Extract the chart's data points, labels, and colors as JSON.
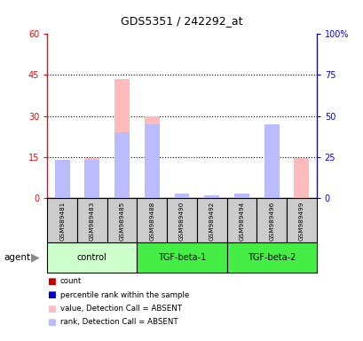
{
  "title": "GDS5351 / 242292_at",
  "samples": [
    "GSM989481",
    "GSM989483",
    "GSM989485",
    "GSM989488",
    "GSM989490",
    "GSM989492",
    "GSM989494",
    "GSM989496",
    "GSM989499"
  ],
  "group_defs": [
    {
      "start": 0,
      "end": 2,
      "label": "control",
      "color": "#ccffcc"
    },
    {
      "start": 3,
      "end": 5,
      "label": "TGF-beta-1",
      "color": "#44ee44"
    },
    {
      "start": 6,
      "end": 8,
      "label": "TGF-beta-2",
      "color": "#44ee44"
    }
  ],
  "absent_value": [
    13.0,
    14.5,
    43.5,
    30.0,
    1.5,
    1.0,
    1.5,
    23.5,
    14.5
  ],
  "absent_rank": [
    23.0,
    23.0,
    40.0,
    45.0,
    2.5,
    1.5,
    2.5,
    45.0,
    0.0
  ],
  "present_value": [
    0.0,
    0.0,
    0.0,
    0.0,
    0.0,
    0.0,
    0.0,
    0.0,
    0.0
  ],
  "present_rank": [
    0.0,
    0.0,
    0.0,
    0.0,
    0.0,
    0.0,
    0.0,
    0.0,
    0.0
  ],
  "ylim_left": [
    0,
    60
  ],
  "ylim_right": [
    0,
    100
  ],
  "yticks_left": [
    0,
    15,
    30,
    45,
    60
  ],
  "yticks_right": [
    0,
    25,
    50,
    75,
    100
  ],
  "ytick_labels_right": [
    "0",
    "25",
    "50",
    "75",
    "100%"
  ],
  "bar_color_absent_value": "#ffbbbb",
  "bar_color_absent_rank": "#bbbbff",
  "bar_color_present_value": "#dd0000",
  "bar_color_present_rank": "#0000dd",
  "legend_items": [
    {
      "color": "#cc0000",
      "label": "count"
    },
    {
      "color": "#0000cc",
      "label": "percentile rank within the sample"
    },
    {
      "color": "#ffbbbb",
      "label": "value, Detection Call = ABSENT"
    },
    {
      "color": "#bbbbff",
      "label": "rank, Detection Call = ABSENT"
    }
  ]
}
